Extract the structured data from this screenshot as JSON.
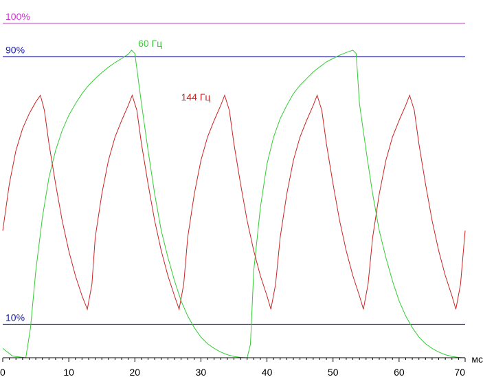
{
  "chart_data": {
    "type": "line",
    "title": "",
    "xlabel": "мс",
    "ylabel": "",
    "xlim": [
      0,
      70
    ],
    "ylim": [
      0,
      107
    ],
    "x_ticks": [
      0,
      10,
      20,
      30,
      40,
      50,
      60,
      70
    ],
    "reference_lines": [
      {
        "label": "100%",
        "y": 100,
        "color": "#cc33cc"
      },
      {
        "label": "90%",
        "y": 90,
        "color": "#1a1aa6"
      },
      {
        "label": "10%",
        "y": 10,
        "color": "#1a1aa6"
      }
    ],
    "series": [
      {
        "name": "60 Гц",
        "color": "#33cc33",
        "x": [
          0,
          1.5,
          3.5,
          4.2,
          5,
          6,
          7,
          8,
          9,
          10,
          11,
          12,
          13,
          14,
          15,
          16,
          17,
          18,
          19,
          19.5,
          20,
          21,
          22,
          23,
          24,
          25,
          26,
          27,
          28,
          29,
          30,
          31,
          32,
          33,
          34,
          35,
          36,
          37,
          37.5,
          38,
          39,
          40,
          41,
          42,
          43,
          44,
          45,
          46,
          47,
          48,
          49,
          50,
          51,
          52,
          53,
          53.5,
          54,
          55,
          56,
          57,
          58,
          59,
          60,
          61,
          62,
          63,
          64,
          65,
          66,
          67,
          68,
          69,
          70
        ],
        "values": [
          2.8,
          0.5,
          0,
          9,
          26,
          42,
          54,
          62,
          68,
          72.5,
          76,
          79,
          81.5,
          83.5,
          85.3,
          86.9,
          88.3,
          89.5,
          90.8,
          92,
          91,
          76,
          62,
          49,
          38,
          30,
          23,
          17,
          12.5,
          9,
          6.2,
          4.2,
          2.8,
          1.7,
          0.9,
          0.4,
          0.1,
          0,
          4,
          26,
          45,
          58,
          66,
          71.5,
          75.5,
          79,
          81.5,
          83.5,
          85.5,
          87,
          88.5,
          89.5,
          90.5,
          91.3,
          92,
          91,
          76,
          62,
          49,
          38,
          30,
          23,
          17,
          12.5,
          9,
          6.2,
          4.2,
          2.8,
          1.7,
          0.9,
          0.4,
          0.1,
          0
        ]
      },
      {
        "name": "144 Гц",
        "color": "#cc2222",
        "x": [
          0,
          1,
          2,
          3,
          4,
          5,
          5.7,
          6.3,
          7,
          8,
          9,
          10,
          11,
          12,
          12.8,
          13.5,
          14,
          15,
          16,
          17,
          18,
          19,
          19.6,
          20.3,
          21,
          22,
          23,
          24,
          25,
          26,
          26.7,
          27.4,
          28,
          29,
          30,
          31,
          32,
          33,
          33.6,
          34.3,
          35,
          36,
          37,
          38,
          39,
          40,
          40.6,
          41.3,
          42,
          43,
          44,
          45,
          46,
          47,
          47.6,
          48.3,
          49,
          50,
          51,
          52,
          53,
          54,
          54.6,
          55.3,
          56,
          57,
          58,
          59,
          60,
          61,
          61.6,
          62.3,
          63,
          64,
          65,
          66,
          67,
          68,
          68.6,
          69.3,
          70
        ],
        "values": [
          38,
          52,
          62,
          68.5,
          73,
          76.5,
          78.5,
          74,
          64,
          52,
          41,
          32,
          24.5,
          18.5,
          14.5,
          22,
          36,
          49,
          59,
          66,
          71,
          75.5,
          78.5,
          74,
          64,
          52,
          41,
          32,
          24.5,
          18.5,
          14.5,
          22,
          36,
          49,
          59,
          66,
          71,
          75.5,
          78.5,
          74,
          64,
          52,
          41,
          32,
          24.5,
          18.5,
          14.5,
          22,
          36,
          49,
          59,
          66,
          71,
          75.5,
          78.5,
          74,
          64,
          52,
          41,
          32,
          24.5,
          18.5,
          14.5,
          22,
          36,
          49,
          59,
          66,
          71,
          75.5,
          78.5,
          74,
          64,
          52,
          41,
          32,
          24.5,
          18.5,
          14.5,
          22,
          38
        ]
      }
    ]
  }
}
